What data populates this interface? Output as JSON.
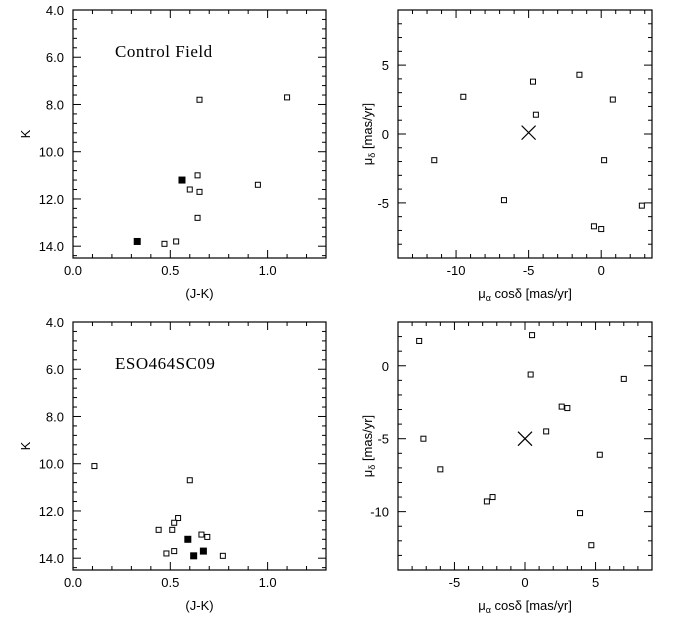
{
  "chart_data": [
    {
      "type": "scatter",
      "title": "Control Field",
      "xlabel": "(J-K)",
      "ylabel": "K",
      "xlim": [
        0.0,
        1.3
      ],
      "ylim": [
        14.5,
        4.0
      ],
      "y_inverted": true,
      "xticks": [
        "0.0",
        "0.5",
        "1.0"
      ],
      "yticks": [
        "4.0",
        "6.0",
        "8.0",
        "10.0",
        "12.0",
        "14.0"
      ],
      "series": [
        {
          "marker": "open-square",
          "points": [
            [
              0.65,
              7.8
            ],
            [
              1.1,
              7.7
            ],
            [
              0.64,
              11.0
            ],
            [
              0.6,
              11.6
            ],
            [
              0.65,
              11.7
            ],
            [
              0.95,
              11.4
            ],
            [
              0.64,
              12.8
            ],
            [
              0.47,
              13.9
            ],
            [
              0.53,
              13.8
            ]
          ]
        },
        {
          "marker": "filled-square",
          "points": [
            [
              0.56,
              11.2
            ],
            [
              0.33,
              13.8
            ]
          ]
        }
      ]
    },
    {
      "type": "scatter",
      "title": "",
      "xlabel": "μ_α cosδ  [mas/yr]",
      "ylabel": "μ_δ [mas/yr]",
      "xlim": [
        -14,
        3.5
      ],
      "ylim": [
        -9,
        9
      ],
      "xticks": [
        "-10",
        "-5",
        "0"
      ],
      "yticks": [
        "5",
        "0",
        "-5"
      ],
      "series": [
        {
          "marker": "open-square",
          "points": [
            [
              -9.5,
              2.7
            ],
            [
              -4.7,
              3.8
            ],
            [
              -1.5,
              4.3
            ],
            [
              0.8,
              2.5
            ],
            [
              -4.5,
              1.4
            ],
            [
              -11.5,
              -1.9
            ],
            [
              0.2,
              -1.9
            ],
            [
              -6.7,
              -4.8
            ],
            [
              -0.5,
              -6.7
            ],
            [
              0.0,
              -6.9
            ],
            [
              2.8,
              -5.2
            ]
          ]
        }
      ],
      "center_marker": {
        "marker": "cross",
        "point": [
          -5.0,
          0.1
        ]
      }
    },
    {
      "type": "scatter",
      "title": "ESO464SC09",
      "xlabel": "(J-K)",
      "ylabel": "K",
      "xlim": [
        0.0,
        1.3
      ],
      "ylim": [
        14.5,
        4.0
      ],
      "y_inverted": true,
      "xticks": [
        "0.0",
        "0.5",
        "1.0"
      ],
      "yticks": [
        "4.0",
        "6.0",
        "8.0",
        "10.0",
        "12.0",
        "14.0"
      ],
      "series": [
        {
          "marker": "open-square",
          "points": [
            [
              0.11,
              10.1
            ],
            [
              0.6,
              10.7
            ],
            [
              0.54,
              12.3
            ],
            [
              0.52,
              12.5
            ],
            [
              0.44,
              12.8
            ],
            [
              0.51,
              12.8
            ],
            [
              0.66,
              13.0
            ],
            [
              0.69,
              13.1
            ],
            [
              0.48,
              13.8
            ],
            [
              0.52,
              13.7
            ],
            [
              0.77,
              13.9
            ]
          ]
        },
        {
          "marker": "filled-square",
          "points": [
            [
              0.59,
              13.2
            ],
            [
              0.67,
              13.7
            ],
            [
              0.62,
              13.9
            ]
          ]
        }
      ]
    },
    {
      "type": "scatter",
      "title": "",
      "xlabel": "μ_α cosδ  [mas/yr]",
      "ylabel": "μ_δ [mas/yr]",
      "xlim": [
        -9,
        9
      ],
      "ylim": [
        -14,
        3
      ],
      "xticks": [
        "-5",
        "0",
        "5"
      ],
      "yticks": [
        "0",
        "-5",
        "-10"
      ],
      "series": [
        {
          "marker": "open-square",
          "points": [
            [
              -7.5,
              1.7
            ],
            [
              0.5,
              2.1
            ],
            [
              0.4,
              -0.6
            ],
            [
              7.0,
              -0.9
            ],
            [
              2.6,
              -2.8
            ],
            [
              3.0,
              -2.9
            ],
            [
              -7.2,
              -5.0
            ],
            [
              1.5,
              -4.5
            ],
            [
              5.3,
              -6.1
            ],
            [
              -6.0,
              -7.1
            ],
            [
              -2.7,
              -9.3
            ],
            [
              -2.3,
              -9.0
            ],
            [
              3.9,
              -10.1
            ],
            [
              4.7,
              -12.3
            ]
          ]
        }
      ],
      "center_marker": {
        "marker": "cross",
        "point": [
          0.0,
          -5.0
        ]
      }
    }
  ]
}
